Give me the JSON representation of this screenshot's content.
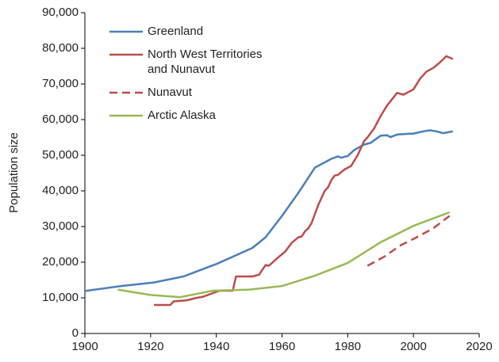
{
  "chart_data": {
    "type": "line",
    "y_label": "Population size",
    "xlim": [
      1900,
      2020
    ],
    "xticks": [
      1900,
      1920,
      1940,
      1960,
      1980,
      2000,
      2020
    ],
    "ylim": [
      0,
      90000
    ],
    "yticks": [
      0,
      {
        "value": 10000,
        "label": "10,000"
      },
      {
        "value": 20000,
        "label": "20,000"
      },
      {
        "value": 30000,
        "label": "30,000"
      },
      {
        "value": 40000,
        "label": "40,000"
      },
      {
        "value": 50000,
        "label": "50,000"
      },
      {
        "value": 60000,
        "label": "60,000"
      },
      {
        "value": 70000,
        "label": "70,000"
      },
      {
        "value": 80000,
        "label": "80,000"
      },
      {
        "value": 90000,
        "label": "90,000"
      }
    ],
    "grid": false,
    "series": [
      {
        "name": "Greenland",
        "color": "#4a7ebb",
        "linestyle": "solid",
        "x": [
          1900,
          1911,
          1921,
          1930,
          1940,
          1951,
          1955,
          1960,
          1965,
          1970,
          1975,
          1977,
          1978,
          1980,
          1982,
          1985,
          1987,
          1990,
          1992,
          1993,
          1995,
          1998,
          2000,
          2003,
          2005,
          2007,
          2009,
          2012
        ],
        "values": [
          11900,
          13300,
          14300,
          16000,
          19500,
          24000,
          27000,
          33000,
          39500,
          46500,
          49000,
          49700,
          49300,
          49800,
          51500,
          53000,
          53500,
          55500,
          55600,
          55100,
          55800,
          56000,
          56100,
          56700,
          57000,
          56700,
          56200,
          56700
        ]
      },
      {
        "name": "North West Territories and Nunavut",
        "color": "#be4b48",
        "linestyle": "solid",
        "x": [
          1921,
          1926,
          1927,
          1931,
          1934,
          1936,
          1938,
          1941,
          1945,
          1946,
          1951,
          1953,
          1955,
          1956,
          1959,
          1961,
          1963,
          1965,
          1966,
          1967,
          1968,
          1969,
          1971,
          1973,
          1974,
          1975,
          1976,
          1977,
          1979,
          1981,
          1983,
          1985,
          1986,
          1988,
          1990,
          1992,
          1995,
          1997,
          2000,
          2002,
          2004,
          2006,
          2008,
          2010,
          2012
        ],
        "values": [
          8000,
          8000,
          9000,
          9300,
          10000,
          10300,
          11000,
          12000,
          12000,
          16000,
          16000,
          16500,
          19200,
          19000,
          21500,
          23000,
          25500,
          27000,
          27200,
          28700,
          29500,
          31000,
          36000,
          40000,
          41000,
          43000,
          44300,
          44500,
          46000,
          47000,
          50000,
          54000,
          55000,
          57500,
          61000,
          64000,
          67500,
          67000,
          68500,
          71500,
          73500,
          74500,
          76000,
          77800,
          77000
        ]
      },
      {
        "name": "Nunavut",
        "color": "#be4b48",
        "linestyle": "dashed",
        "x": [
          1986,
          1991,
          1996,
          2001,
          2006,
          2011
        ],
        "values": [
          19000,
          21500,
          24700,
          27000,
          29500,
          33000
        ]
      },
      {
        "name": "Arctic Alaska",
        "color": "#98b954",
        "linestyle": "solid",
        "x": [
          1910,
          1920,
          1929,
          1939,
          1950,
          1960,
          1970,
          1980,
          1990,
          2000,
          2011
        ],
        "values": [
          12300,
          10800,
          10200,
          12000,
          12300,
          13300,
          16200,
          19800,
          25600,
          30200,
          34000
        ]
      }
    ]
  }
}
